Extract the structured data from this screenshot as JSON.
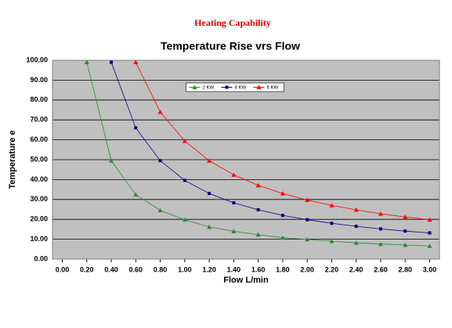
{
  "header": {
    "title": "Heating Capability"
  },
  "chart_data": {
    "type": "line",
    "title": "Temperature Rise vrs Flow",
    "x_label": "Flow L/min",
    "y_label": "Temperature e",
    "x": [
      0.2,
      0.4,
      0.6,
      0.8,
      1.0,
      1.2,
      1.4,
      1.6,
      1.8,
      2.0,
      2.2,
      2.4,
      2.6,
      2.8,
      3.0
    ],
    "series": [
      {
        "name": "2 KW",
        "color": "#2e8b2e",
        "marker": "triangle",
        "values": [
          99,
          49.5,
          32.5,
          24.5,
          19.8,
          16.2,
          14,
          12.3,
          10.8,
          9.9,
          9,
          8.2,
          7.6,
          7.1,
          6.6
        ]
      },
      {
        "name": "4 KW",
        "color": "#000080",
        "marker": "square",
        "values": [
          null,
          99,
          66,
          49.5,
          39.6,
          33,
          28.3,
          24.8,
          22,
          19.8,
          18,
          16.5,
          15.2,
          14.1,
          13.2
        ]
      },
      {
        "name": "6 KW",
        "color": "#ff0000",
        "marker": "triangle",
        "values": [
          null,
          null,
          99,
          74,
          59.4,
          49.5,
          42.4,
          37.1,
          33,
          29.7,
          27,
          24.8,
          22.8,
          21.2,
          19.8
        ]
      }
    ],
    "xlim": [
      -0.08,
      3.08
    ],
    "xticks": [
      {
        "value": 0,
        "label": "0.00"
      },
      {
        "value": 0.2,
        "label": "0.20"
      },
      {
        "value": 0.4,
        "label": "0.40"
      },
      {
        "value": 0.6,
        "label": "0.60"
      },
      {
        "value": 0.8,
        "label": "0.80"
      },
      {
        "value": 1,
        "label": "1.00"
      },
      {
        "value": 1.2,
        "label": "1.20"
      },
      {
        "value": 1.4,
        "label": "1.40"
      },
      {
        "value": 1.6,
        "label": "1.60"
      },
      {
        "value": 1.8,
        "label": "1.80"
      },
      {
        "value": 2,
        "label": "2.00"
      },
      {
        "value": 2.2,
        "label": "2.20"
      },
      {
        "value": 2.4,
        "label": "2.40"
      },
      {
        "value": 2.6,
        "label": "2.60"
      },
      {
        "value": 2.8,
        "label": "2.80"
      },
      {
        "value": 3,
        "label": "3.00"
      }
    ],
    "ylim": [
      0,
      100
    ],
    "yticks": [
      {
        "value": 0,
        "label": "0.00"
      },
      {
        "value": 10,
        "label": "10.00"
      },
      {
        "value": 20,
        "label": "20.00"
      },
      {
        "value": 30,
        "label": "30.00"
      },
      {
        "value": 40,
        "label": "40.00"
      },
      {
        "value": 50,
        "label": "50.00"
      },
      {
        "value": 60,
        "label": "60.00"
      },
      {
        "value": 70,
        "label": "70.00"
      },
      {
        "value": 80,
        "label": "80.00"
      },
      {
        "value": 90,
        "label": "90.00"
      },
      {
        "value": 100,
        "label": "100.00"
      }
    ],
    "grid": true,
    "legend": "top-center",
    "background": "#c0c0c0"
  }
}
